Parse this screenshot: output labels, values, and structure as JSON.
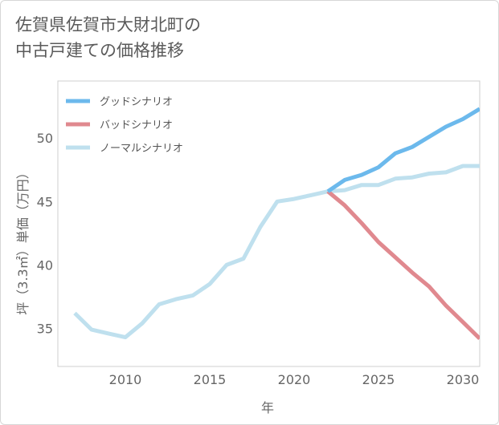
{
  "title": "佐賀県佐賀市大財北町の\n中古戸建ての価格推移",
  "chart_data": {
    "type": "line",
    "xlabel": "年",
    "ylabel": "坪（3.3㎡）単価（万円）",
    "xlim": [
      2006,
      2031
    ],
    "ylim": [
      32,
      54.5
    ],
    "xticks": [
      2010,
      2015,
      2020,
      2025,
      2030
    ],
    "yticks": [
      35,
      40,
      45,
      50
    ],
    "grid": true,
    "legend_position": "top-left",
    "series": [
      {
        "name": "グッドシナリオ",
        "color": "#6cb9ec",
        "x": [
          2022,
          2023,
          2024,
          2025,
          2026,
          2027,
          2028,
          2029,
          2030,
          2031
        ],
        "values": [
          45.8,
          46.7,
          47.1,
          47.7,
          48.8,
          49.3,
          50.1,
          50.9,
          51.5,
          52.3
        ]
      },
      {
        "name": "バッドシナリオ",
        "color": "#e0898f",
        "x": [
          2022,
          2023,
          2024,
          2025,
          2026,
          2027,
          2028,
          2029,
          2030,
          2031
        ],
        "values": [
          45.8,
          44.7,
          43.3,
          41.8,
          40.6,
          39.4,
          38.3,
          36.8,
          35.5,
          34.2
        ]
      },
      {
        "name": "ノーマルシナリオ",
        "color": "#bfe0ee",
        "x": [
          2007,
          2008,
          2009,
          2010,
          2011,
          2012,
          2013,
          2014,
          2015,
          2016,
          2017,
          2018,
          2019,
          2020,
          2021,
          2022,
          2023,
          2024,
          2025,
          2026,
          2027,
          2028,
          2029,
          2030,
          2031
        ],
        "values": [
          36.2,
          34.9,
          34.6,
          34.3,
          35.4,
          36.9,
          37.3,
          37.6,
          38.5,
          40.0,
          40.5,
          43.0,
          45.0,
          45.2,
          45.5,
          45.8,
          45.9,
          46.3,
          46.3,
          46.8,
          46.9,
          47.2,
          47.3,
          47.8,
          47.8
        ]
      }
    ]
  }
}
